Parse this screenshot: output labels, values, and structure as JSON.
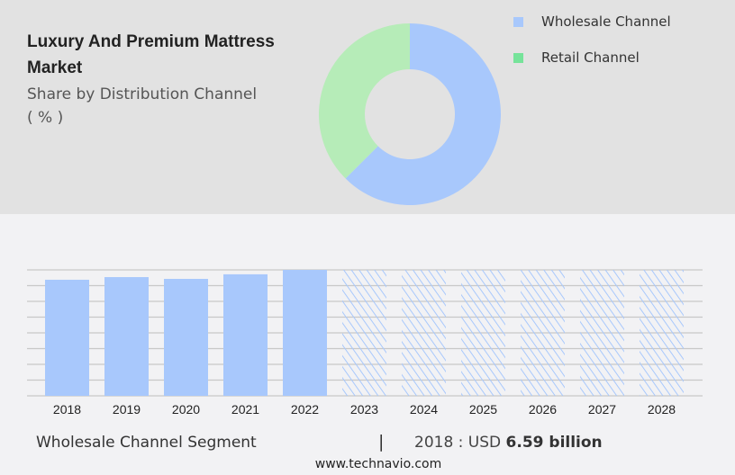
{
  "header": {
    "title": "Luxury And Premium Mattress Market",
    "subtitle": "Share by Distribution Channel",
    "unit": "( % )"
  },
  "chart_data": [
    {
      "type": "pie",
      "title": "Share by Distribution Channel",
      "legend_position": "top-right",
      "slices": [
        {
          "name": "Wholesale Channel",
          "value": 62.5,
          "color": "#a8c8fc"
        },
        {
          "name": "Retail Channel",
          "value": 37.5,
          "color": "#b6ecb8",
          "legend_color": "#76e39a"
        }
      ]
    },
    {
      "type": "bar",
      "series_name": "Wholesale Channel Segment",
      "categories": [
        "2018",
        "2019",
        "2020",
        "2021",
        "2022",
        "2023",
        "2024",
        "2025",
        "2026",
        "2027",
        "2028"
      ],
      "values": [
        6.59,
        6.74,
        6.64,
        6.9,
        7.15,
        null,
        null,
        null,
        null,
        null,
        null
      ],
      "forecast": [
        false,
        false,
        false,
        false,
        false,
        true,
        true,
        true,
        true,
        true,
        true
      ],
      "ylim": [
        0,
        7.15
      ],
      "grid": true,
      "color": "#a8c8fc"
    }
  ],
  "footer": {
    "segment": "Wholesale Channel Segment",
    "separator": "|",
    "year_label": "2018 : USD",
    "value": "6.59 billion",
    "site": "www.technavio.com"
  }
}
